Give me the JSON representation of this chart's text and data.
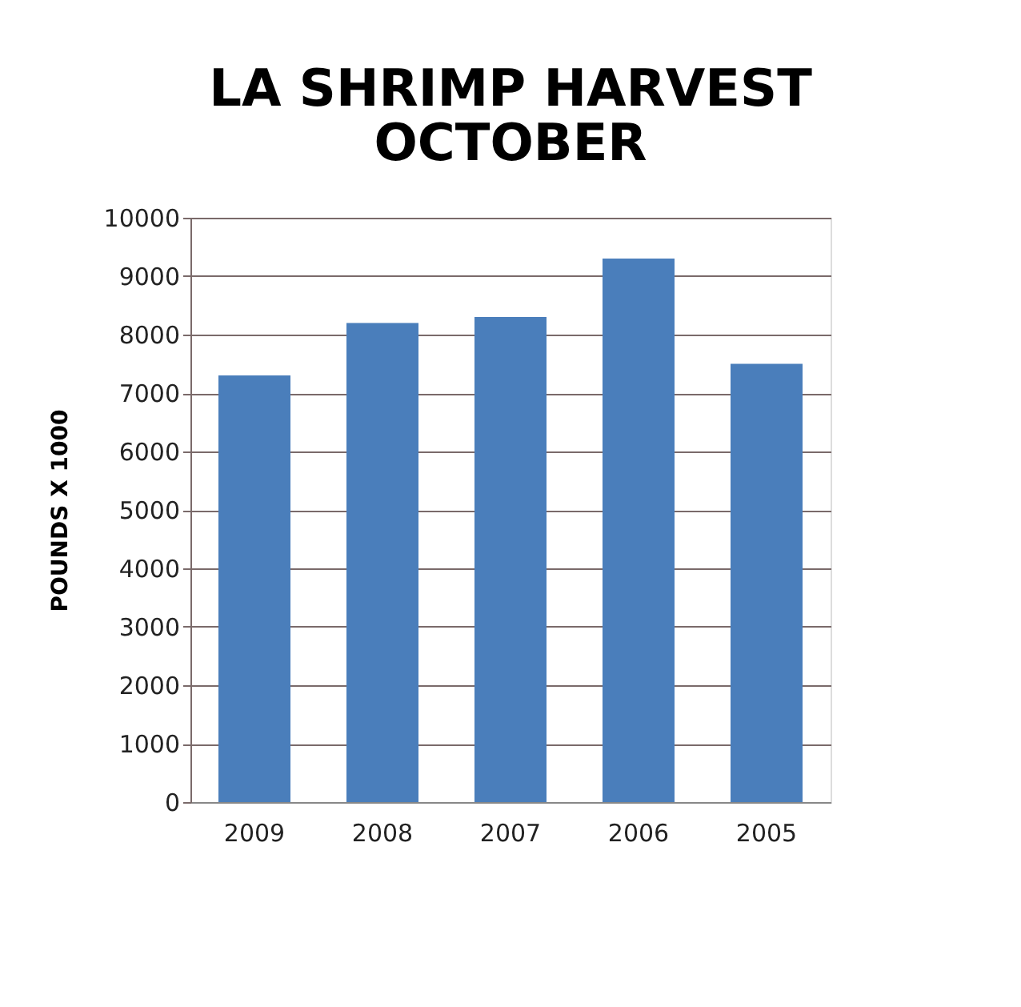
{
  "chart_data": {
    "type": "bar",
    "title": [
      "LA SHRIMP HARVEST",
      "OCTOBER"
    ],
    "ylabel": "POUNDS X 1000",
    "categories": [
      "2009",
      "2008",
      "2007",
      "2006",
      "2005"
    ],
    "values": [
      7300,
      8200,
      8300,
      9300,
      7500
    ],
    "color": "#4a7ebb",
    "ylim": [
      0,
      10000
    ],
    "yticks": [
      0,
      1000,
      2000,
      3000,
      4000,
      5000,
      6000,
      7000,
      8000,
      9000,
      10000
    ],
    "grid": "y"
  }
}
